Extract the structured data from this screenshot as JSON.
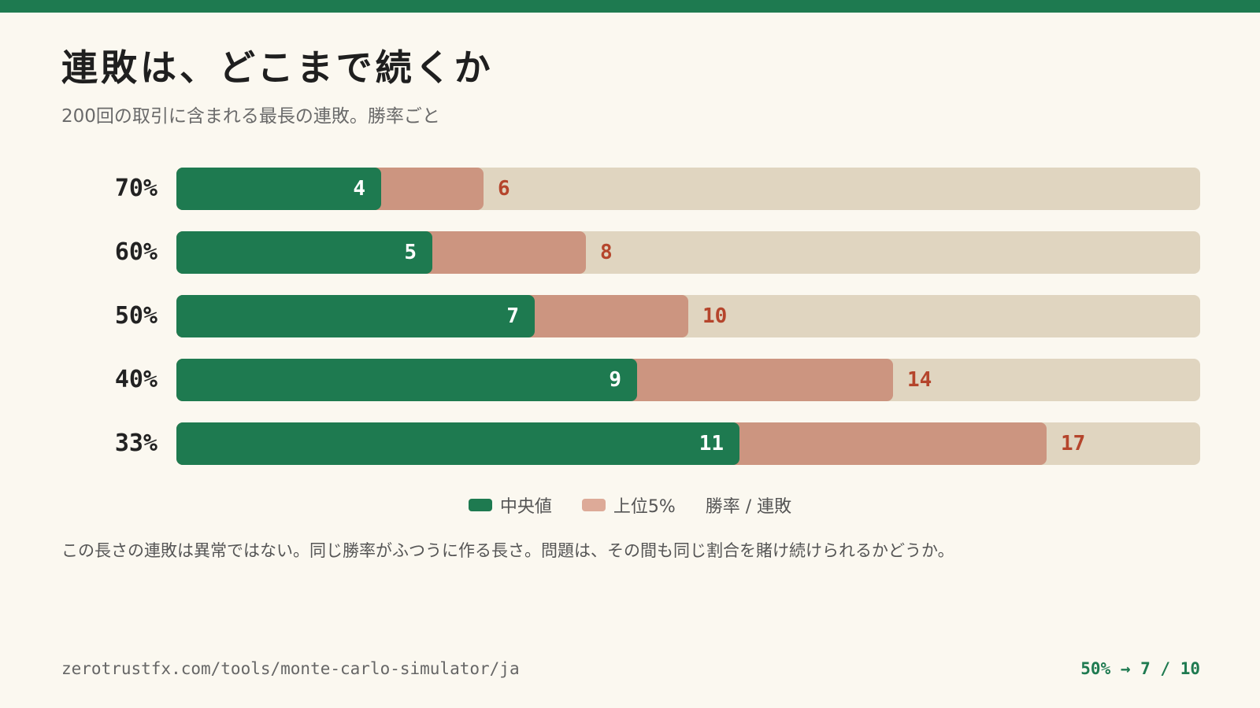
{
  "header": {
    "title": "連敗は、どこまで続くか",
    "subtitle": "200回の取引に含まれる最長の連敗。勝率ごと"
  },
  "chart_data": {
    "type": "bar",
    "orientation": "horizontal",
    "categories": [
      "70%",
      "60%",
      "50%",
      "40%",
      "33%"
    ],
    "series": [
      {
        "name": "中央値",
        "values": [
          4,
          5,
          7,
          9,
          11
        ],
        "color": "#1e7a50"
      },
      {
        "name": "上位5%",
        "values": [
          6,
          8,
          10,
          14,
          17
        ],
        "color": "#cc9580"
      }
    ],
    "xlim": [
      0,
      20
    ],
    "grid": false,
    "legend_placement": "bottom-center",
    "track_color": "#e0d5c0"
  },
  "legend": {
    "median": "中央値",
    "p95": "上位5%",
    "axis_hint": "勝率 / 連敗"
  },
  "note": "この長さの連敗は異常ではない。同じ勝率がふつうに作る長さ。問題は、その間も同じ割合を賭け続けられるかどうか。",
  "footer": {
    "url": "zerotrustfx.com/tools/monte-carlo-simulator/ja",
    "stat": "50% → 7 / 10"
  },
  "colors": {
    "accent": "#1e7a50",
    "p95_label": "#b5452c",
    "background": "#fbf8f0"
  }
}
